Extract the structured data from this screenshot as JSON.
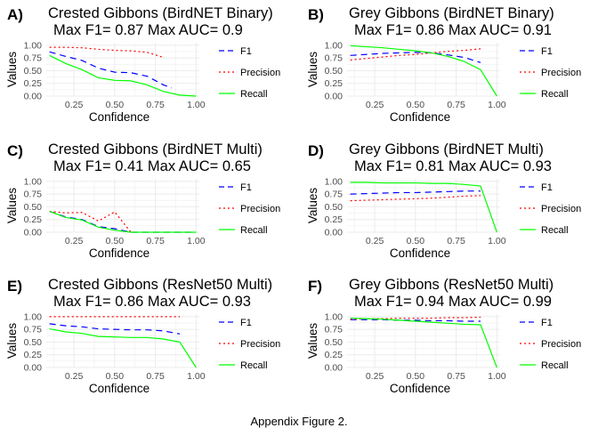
{
  "caption": "Appendix Figure 2.",
  "colors": {
    "F1": "#0000ff",
    "Precision": "#ff0000",
    "Recall": "#00ff00",
    "grid": "#ebebeb",
    "axis_text": "#4d4d4d"
  },
  "chart_data": [
    {
      "type": "line",
      "panel_letter": "A)",
      "title_line1": "Crested Gibbons (BirdNET Binary)",
      "title_line2": "Max F1= 0.87 Max AUC= 0.9",
      "xlabel": "Confidence",
      "ylabel": "Values",
      "xlim": [
        0.08,
        1.02
      ],
      "ylim": [
        0,
        1.05
      ],
      "xticks": [
        "0.25",
        "0.50",
        "0.75",
        "1.00"
      ],
      "yticks": [
        "0.00",
        "0.25",
        "0.50",
        "0.75",
        "1.00"
      ],
      "grid": true,
      "legend_position": "right",
      "legend": [
        "F1",
        "Precision",
        "Recall"
      ],
      "series": [
        {
          "name": "F1",
          "x": [
            0.1,
            0.2,
            0.3,
            0.4,
            0.5,
            0.6,
            0.7,
            0.8,
            0.85
          ],
          "y": [
            0.87,
            0.78,
            0.7,
            0.55,
            0.47,
            0.46,
            0.39,
            0.22,
            0.16
          ]
        },
        {
          "name": "Precision",
          "x": [
            0.1,
            0.2,
            0.3,
            0.4,
            0.5,
            0.6,
            0.7,
            0.8
          ],
          "y": [
            0.96,
            0.96,
            0.95,
            0.92,
            0.9,
            0.89,
            0.86,
            0.76
          ]
        },
        {
          "name": "Recall",
          "x": [
            0.1,
            0.2,
            0.3,
            0.4,
            0.5,
            0.6,
            0.7,
            0.8,
            0.9,
            1.0
          ],
          "y": [
            0.8,
            0.64,
            0.52,
            0.36,
            0.31,
            0.3,
            0.22,
            0.09,
            0.02,
            0.0
          ]
        }
      ]
    },
    {
      "type": "line",
      "panel_letter": "B)",
      "title_line1": "Grey Gibbons (BirdNET Binary)",
      "title_line2": "Max F1= 0.86 Max AUC= 0.91",
      "xlabel": "Confidence",
      "ylabel": "Values",
      "xlim": [
        0.08,
        1.02
      ],
      "ylim": [
        0,
        1.05
      ],
      "xticks": [
        "0.25",
        "0.50",
        "0.75",
        "1.00"
      ],
      "yticks": [
        "0.00",
        "0.25",
        "0.50",
        "0.75",
        "1.00"
      ],
      "grid": true,
      "legend_position": "right",
      "legend": [
        "F1",
        "Precision",
        "Recall"
      ],
      "series": [
        {
          "name": "F1",
          "x": [
            0.1,
            0.2,
            0.3,
            0.4,
            0.5,
            0.6,
            0.7,
            0.8,
            0.9
          ],
          "y": [
            0.8,
            0.82,
            0.84,
            0.85,
            0.86,
            0.85,
            0.81,
            0.76,
            0.66
          ]
        },
        {
          "name": "Precision",
          "x": [
            0.1,
            0.2,
            0.3,
            0.4,
            0.5,
            0.6,
            0.7,
            0.8,
            0.9
          ],
          "y": [
            0.71,
            0.74,
            0.77,
            0.8,
            0.82,
            0.85,
            0.88,
            0.9,
            0.93
          ]
        },
        {
          "name": "Recall",
          "x": [
            0.1,
            0.2,
            0.3,
            0.4,
            0.5,
            0.6,
            0.7,
            0.8,
            0.9,
            1.0
          ],
          "y": [
            0.99,
            0.97,
            0.95,
            0.92,
            0.89,
            0.85,
            0.78,
            0.68,
            0.52,
            0.0
          ]
        }
      ]
    },
    {
      "type": "line",
      "panel_letter": "C)",
      "title_line1": "Crested Gibbons (BirdNET Multi)",
      "title_line2": "Max F1= 0.41 Max AUC= 0.65",
      "xlabel": "Confidence",
      "ylabel": "Values",
      "xlim": [
        0.08,
        1.02
      ],
      "ylim": [
        0,
        1.05
      ],
      "xticks": [
        "0.25",
        "0.50",
        "0.75",
        "1.00"
      ],
      "yticks": [
        "0.00",
        "0.25",
        "0.50",
        "0.75",
        "1.00"
      ],
      "grid": true,
      "legend_position": "right",
      "legend": [
        "F1",
        "Precision",
        "Recall"
      ],
      "series": [
        {
          "name": "F1",
          "x": [
            0.1,
            0.2,
            0.3,
            0.4,
            0.5,
            0.6,
            0.7,
            0.8,
            0.9,
            1.0
          ],
          "y": [
            0.41,
            0.3,
            0.25,
            0.11,
            0.07,
            0.0,
            0.0,
            0.0,
            0.0,
            0.0
          ]
        },
        {
          "name": "Precision",
          "x": [
            0.1,
            0.2,
            0.3,
            0.4,
            0.5,
            0.6
          ],
          "y": [
            0.41,
            0.38,
            0.39,
            0.22,
            0.4,
            0.0
          ]
        },
        {
          "name": "Recall",
          "x": [
            0.1,
            0.2,
            0.3,
            0.4,
            0.5,
            0.6,
            0.7,
            0.8,
            0.9,
            1.0
          ],
          "y": [
            0.41,
            0.29,
            0.24,
            0.1,
            0.04,
            0.0,
            0.0,
            0.0,
            0.0,
            0.0
          ]
        }
      ]
    },
    {
      "type": "line",
      "panel_letter": "D)",
      "title_line1": "Grey Gibbons (BirdNET Multi)",
      "title_line2": "Max F1= 0.81 Max AUC= 0.93",
      "xlabel": "Confidence",
      "ylabel": "Values",
      "xlim": [
        0.08,
        1.02
      ],
      "ylim": [
        0,
        1.05
      ],
      "xticks": [
        "0.25",
        "0.50",
        "0.75",
        "1.00"
      ],
      "yticks": [
        "0.00",
        "0.25",
        "0.50",
        "0.75",
        "1.00"
      ],
      "grid": true,
      "legend_position": "right",
      "legend": [
        "F1",
        "Precision",
        "Recall"
      ],
      "series": [
        {
          "name": "F1",
          "x": [
            0.1,
            0.2,
            0.3,
            0.4,
            0.5,
            0.6,
            0.7,
            0.8,
            0.9
          ],
          "y": [
            0.75,
            0.76,
            0.77,
            0.78,
            0.78,
            0.79,
            0.8,
            0.81,
            0.81
          ]
        },
        {
          "name": "Precision",
          "x": [
            0.1,
            0.2,
            0.3,
            0.4,
            0.5,
            0.6,
            0.7,
            0.8,
            0.9
          ],
          "y": [
            0.62,
            0.63,
            0.64,
            0.65,
            0.66,
            0.67,
            0.69,
            0.71,
            0.72
          ]
        },
        {
          "name": "Recall",
          "x": [
            0.1,
            0.2,
            0.3,
            0.4,
            0.5,
            0.6,
            0.7,
            0.8,
            0.9,
            1.0
          ],
          "y": [
            0.98,
            0.98,
            0.97,
            0.97,
            0.97,
            0.96,
            0.96,
            0.94,
            0.91,
            0.0
          ]
        }
      ]
    },
    {
      "type": "line",
      "panel_letter": "E)",
      "title_line1": "Crested Gibbons (ResNet50 Multi)",
      "title_line2": "Max F1= 0.86 Max AUC= 0.93",
      "xlabel": "Confidence",
      "ylabel": "Values",
      "xlim": [
        0.08,
        1.02
      ],
      "ylim": [
        0,
        1.05
      ],
      "xticks": [
        "0.25",
        "0.50",
        "0.75",
        "1.00"
      ],
      "yticks": [
        "0.00",
        "0.25",
        "0.50",
        "0.75",
        "1.00"
      ],
      "grid": true,
      "legend_position": "right",
      "legend": [
        "F1",
        "Precision",
        "Recall"
      ],
      "series": [
        {
          "name": "F1",
          "x": [
            0.1,
            0.2,
            0.3,
            0.4,
            0.5,
            0.6,
            0.7,
            0.8,
            0.9
          ],
          "y": [
            0.86,
            0.82,
            0.8,
            0.76,
            0.75,
            0.74,
            0.74,
            0.72,
            0.66
          ]
        },
        {
          "name": "Precision",
          "x": [
            0.1,
            0.2,
            0.3,
            0.4,
            0.5,
            0.6,
            0.7,
            0.8,
            0.9
          ],
          "y": [
            1.0,
            1.0,
            1.0,
            1.0,
            1.0,
            1.0,
            1.0,
            1.0,
            1.0
          ]
        },
        {
          "name": "Recall",
          "x": [
            0.1,
            0.2,
            0.3,
            0.4,
            0.5,
            0.6,
            0.7,
            0.8,
            0.9,
            1.0
          ],
          "y": [
            0.76,
            0.7,
            0.67,
            0.61,
            0.6,
            0.59,
            0.59,
            0.56,
            0.5,
            0.0
          ]
        }
      ]
    },
    {
      "type": "line",
      "panel_letter": "F)",
      "title_line1": "Grey Gibbons (ResNet50 Multi)",
      "title_line2": "Max F1= 0.94 Max AUC= 0.99",
      "xlabel": "Confidence",
      "ylabel": "Values",
      "xlim": [
        0.08,
        1.02
      ],
      "ylim": [
        0,
        1.05
      ],
      "xticks": [
        "0.25",
        "0.50",
        "0.75",
        "1.00"
      ],
      "yticks": [
        "0.00",
        "0.25",
        "0.50",
        "0.75",
        "1.00"
      ],
      "grid": true,
      "legend_position": "right",
      "legend": [
        "F1",
        "Precision",
        "Recall"
      ],
      "series": [
        {
          "name": "F1",
          "x": [
            0.1,
            0.2,
            0.3,
            0.4,
            0.5,
            0.6,
            0.7,
            0.8,
            0.9
          ],
          "y": [
            0.94,
            0.94,
            0.94,
            0.93,
            0.93,
            0.92,
            0.92,
            0.91,
            0.91
          ]
        },
        {
          "name": "Precision",
          "x": [
            0.1,
            0.2,
            0.3,
            0.4,
            0.5,
            0.6,
            0.7,
            0.8,
            0.9
          ],
          "y": [
            0.95,
            0.96,
            0.96,
            0.97,
            0.97,
            0.97,
            0.98,
            0.98,
            0.99
          ]
        },
        {
          "name": "Recall",
          "x": [
            0.1,
            0.2,
            0.3,
            0.4,
            0.5,
            0.6,
            0.7,
            0.8,
            0.9,
            1.0
          ],
          "y": [
            0.97,
            0.96,
            0.95,
            0.93,
            0.91,
            0.89,
            0.87,
            0.85,
            0.84,
            0.0
          ]
        }
      ]
    }
  ]
}
